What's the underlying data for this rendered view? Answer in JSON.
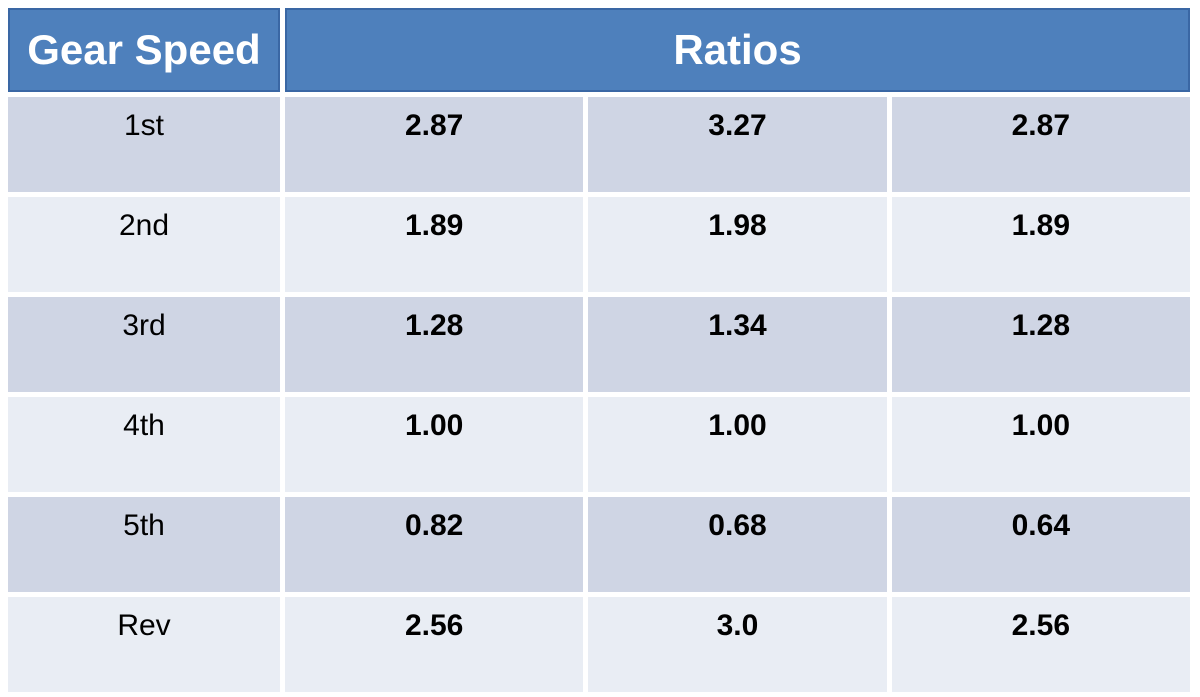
{
  "table": {
    "header": {
      "gear_speed": "Gear Speed",
      "ratios": "Ratios"
    },
    "rows": [
      {
        "gear": "1st",
        "ratios": [
          "2.87",
          "3.27",
          "2.87"
        ]
      },
      {
        "gear": "2nd",
        "ratios": [
          "1.89",
          "1.98",
          "1.89"
        ]
      },
      {
        "gear": "3rd",
        "ratios": [
          "1.28",
          "1.34",
          "1.28"
        ]
      },
      {
        "gear": "4th",
        "ratios": [
          "1.00",
          "1.00",
          "1.00"
        ]
      },
      {
        "gear": "5th",
        "ratios": [
          "0.82",
          "0.68",
          "0.64"
        ]
      },
      {
        "gear": "Rev",
        "ratios": [
          "2.56",
          "3.0",
          "2.56"
        ]
      }
    ]
  },
  "colors": {
    "header_bg": "#4e80bc",
    "header_border": "#3a67a4",
    "header_text": "#ffffff",
    "row_band_dark": "#cfd5e4",
    "row_band_light": "#e9edf4",
    "cell_text": "#000000",
    "gap": "#ffffff"
  },
  "chart_data": {
    "type": "table",
    "title": "Gear Speed Ratios",
    "headers": [
      {
        "label": "Gear Speed",
        "colspan": 1
      },
      {
        "label": "Ratios",
        "colspan": 3
      }
    ],
    "rows": [
      [
        "1st",
        "2.87",
        "3.27",
        "2.87"
      ],
      [
        "2nd",
        "1.89",
        "1.98",
        "1.89"
      ],
      [
        "3rd",
        "1.28",
        "1.34",
        "1.28"
      ],
      [
        "4th",
        "1.00",
        "1.00",
        "1.00"
      ],
      [
        "5th",
        "0.82",
        "0.68",
        "0.64"
      ],
      [
        "Rev",
        "2.56",
        "3.0",
        "2.56"
      ]
    ],
    "layout": {
      "banded_rows": true,
      "merged_header": "Ratios spans columns 2-4"
    }
  }
}
